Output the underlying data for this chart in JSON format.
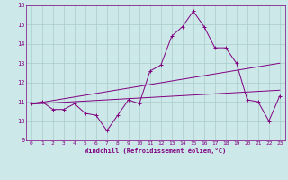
{
  "title": "",
  "xlabel": "Windchill (Refroidissement éolien,°C)",
  "ylabel": "",
  "x": [
    0,
    1,
    2,
    3,
    4,
    5,
    6,
    7,
    8,
    9,
    10,
    11,
    12,
    13,
    14,
    15,
    16,
    17,
    18,
    19,
    20,
    21,
    22,
    23
  ],
  "y_main": [
    10.9,
    11.0,
    10.6,
    10.6,
    10.9,
    10.4,
    10.3,
    9.5,
    10.3,
    11.1,
    10.9,
    12.6,
    12.9,
    14.4,
    14.9,
    15.7,
    14.9,
    13.8,
    13.8,
    13.0,
    11.1,
    11.0,
    10.0,
    11.3
  ],
  "trend1_x0": 0,
  "trend1_y0": 10.88,
  "trend1_x1": 23,
  "trend1_y1": 13.0,
  "trend2_x0": 0,
  "trend2_y0": 10.88,
  "trend2_x1": 23,
  "trend2_y1": 11.6,
  "ylim": [
    9,
    16
  ],
  "xlim": [
    -0.5,
    23.5
  ],
  "yticks": [
    9,
    10,
    11,
    12,
    13,
    14,
    15,
    16
  ],
  "xticks": [
    0,
    1,
    2,
    3,
    4,
    5,
    6,
    7,
    8,
    9,
    10,
    11,
    12,
    13,
    14,
    15,
    16,
    17,
    18,
    19,
    20,
    21,
    22,
    23
  ],
  "line_color": "#800080",
  "bg_color": "#cce8e8",
  "grid_color": "#aacccc",
  "tick_label_color": "#800080",
  "axis_label_color": "#800080",
  "spine_color": "#800080"
}
